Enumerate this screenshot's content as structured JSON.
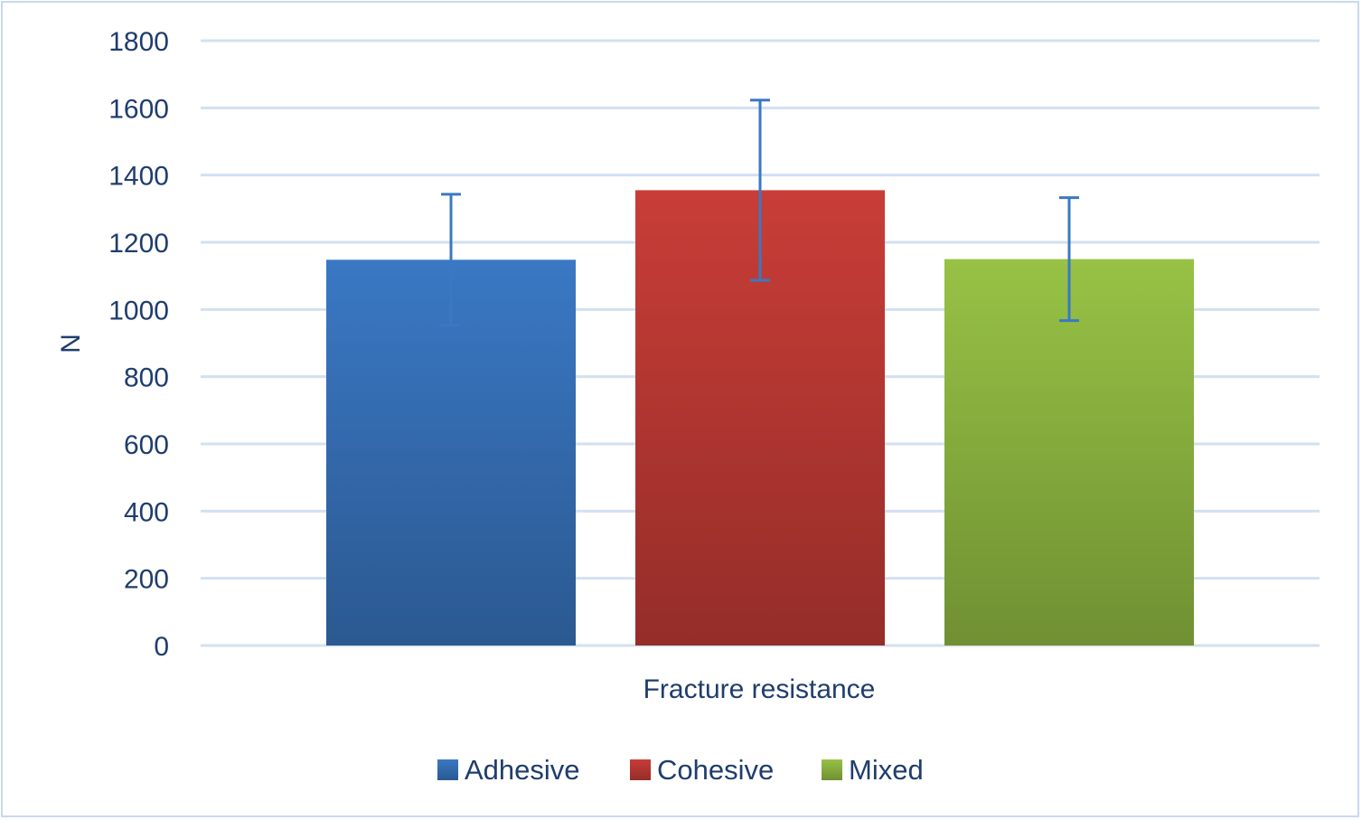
{
  "chart_data": {
    "type": "bar",
    "title": "",
    "xlabel": "Fracture resistance",
    "ylabel": "N",
    "ylim": [
      0,
      1800
    ],
    "yticks": [
      0,
      200,
      400,
      600,
      800,
      1000,
      1200,
      1400,
      1600,
      1800
    ],
    "grid": true,
    "legend_position": "bottom",
    "categories": [
      "Fracture resistance"
    ],
    "series": [
      {
        "name": "Adhesive",
        "values": [
          1148
        ],
        "error": [
          195
        ],
        "color": "#3a78c4"
      },
      {
        "name": "Cohesive",
        "values": [
          1355
        ],
        "error": [
          268
        ],
        "color": "#c93d37"
      },
      {
        "name": "Mixed",
        "values": [
          1150
        ],
        "error": [
          183
        ],
        "color": "#97c245"
      }
    ]
  }
}
